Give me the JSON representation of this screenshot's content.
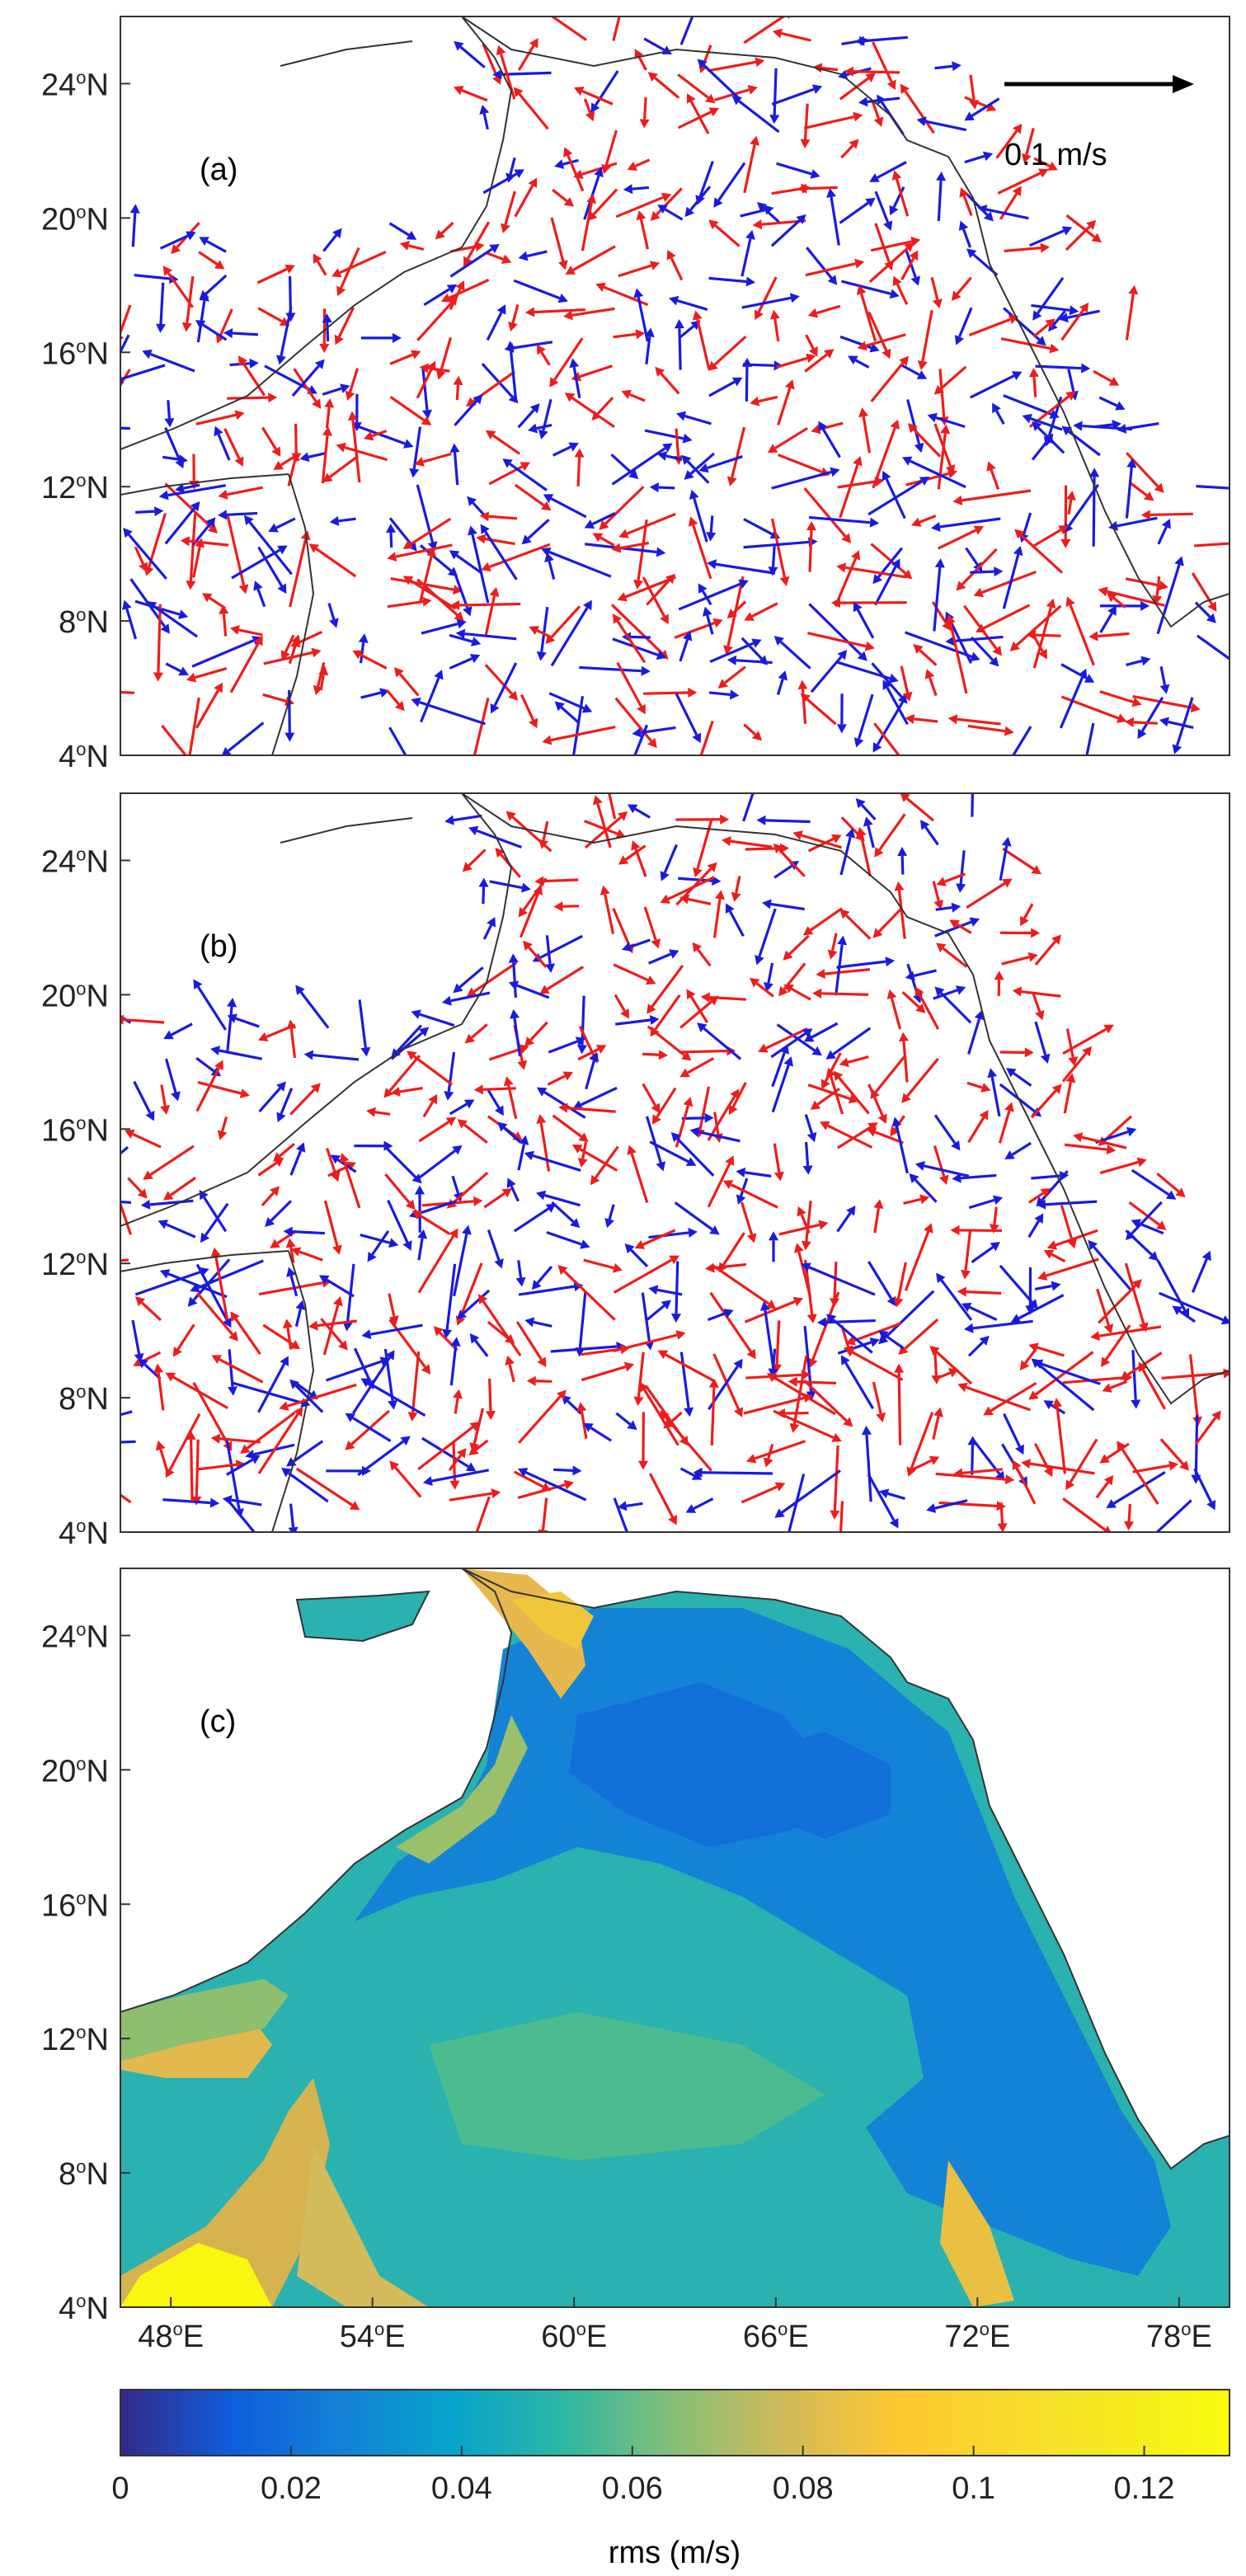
{
  "figure": {
    "panels": [
      {
        "label": "(a)",
        "type": "vector-field"
      },
      {
        "label": "(b)",
        "type": "vector-field"
      },
      {
        "label": "(c)",
        "type": "rms-map"
      }
    ],
    "y_ticks": [
      {
        "deg": "24",
        "dir": "N"
      },
      {
        "deg": "20",
        "dir": "N"
      },
      {
        "deg": "16",
        "dir": "N"
      },
      {
        "deg": "12",
        "dir": "N"
      },
      {
        "deg": "8",
        "dir": "N"
      },
      {
        "deg": "4",
        "dir": "N"
      }
    ],
    "x_ticks": [
      {
        "deg": "48",
        "dir": "E"
      },
      {
        "deg": "54",
        "dir": "E"
      },
      {
        "deg": "60",
        "dir": "E"
      },
      {
        "deg": "66",
        "dir": "E"
      },
      {
        "deg": "72",
        "dir": "E"
      },
      {
        "deg": "78",
        "dir": "E"
      }
    ],
    "reference_vector": {
      "label": "0.1 m/s"
    },
    "vector_colors": {
      "primary": "#ee1c1c",
      "secondary": "#1a1adf"
    },
    "colorbar": {
      "label": "rms (m/s)",
      "ticks": [
        "0",
        "0.02",
        "0.04",
        "0.06",
        "0.08",
        "0.1",
        "0.12"
      ],
      "range": [
        0,
        0.13
      ],
      "colormap": "parula"
    },
    "land_outline_color": "#333333"
  }
}
